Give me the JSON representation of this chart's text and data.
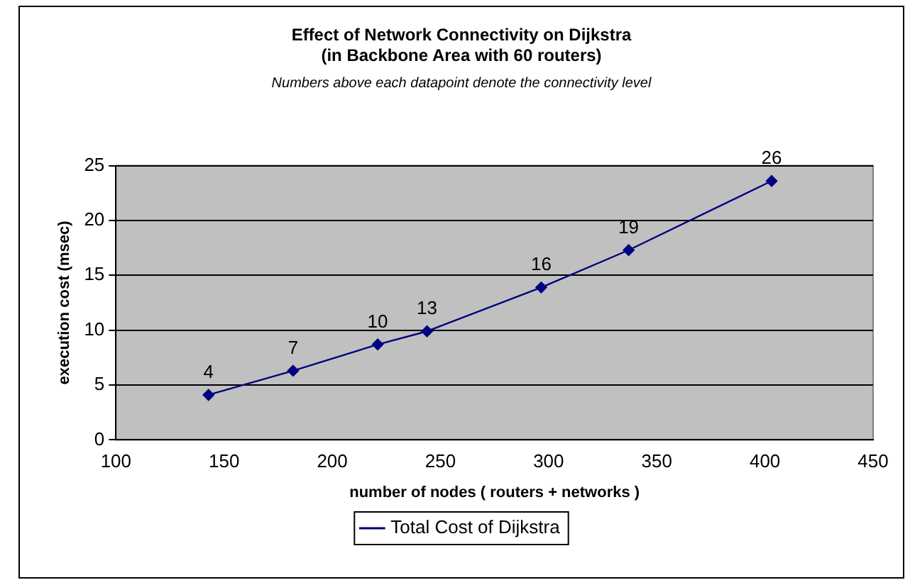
{
  "chart_data": {
    "type": "line",
    "title": [
      "Effect of Network Connectivity on Dijkstra",
      "(in Backbone Area with 60 routers)"
    ],
    "subtitle": "Numbers above each datapoint denote the connectivity level",
    "xlabel": "number of nodes ( routers + networks )",
    "ylabel": "execution cost (msec)",
    "x": [
      142.8,
      181.9,
      221.0,
      243.8,
      296.6,
      337.0,
      403.1
    ],
    "series": [
      {
        "name": "Total Cost of Dijkstra",
        "color": "#000080",
        "values": [
          4.1,
          6.3,
          8.7,
          9.9,
          13.9,
          17.3,
          23.6
        ]
      }
    ],
    "annotations": [
      {
        "text": "4",
        "x": 142.8,
        "y": 4.1
      },
      {
        "text": "7",
        "x": 181.9,
        "y": 6.3
      },
      {
        "text": "10",
        "x": 221.0,
        "y": 8.7
      },
      {
        "text": "13",
        "x": 243.8,
        "y": 9.9
      },
      {
        "text": "16",
        "x": 296.6,
        "y": 13.9
      },
      {
        "text": "19",
        "x": 337.0,
        "y": 17.3
      },
      {
        "text": "26",
        "x": 403.1,
        "y": 23.6
      }
    ],
    "xlim": [
      100,
      450
    ],
    "xticks": [
      100,
      150,
      200,
      250,
      300,
      350,
      400,
      450
    ],
    "ylim": [
      0,
      25
    ],
    "yticks": [
      0,
      5,
      10,
      15,
      20,
      25
    ],
    "grid": "y",
    "legend": "bottom",
    "marker": "diamond",
    "line_style": "solid"
  }
}
